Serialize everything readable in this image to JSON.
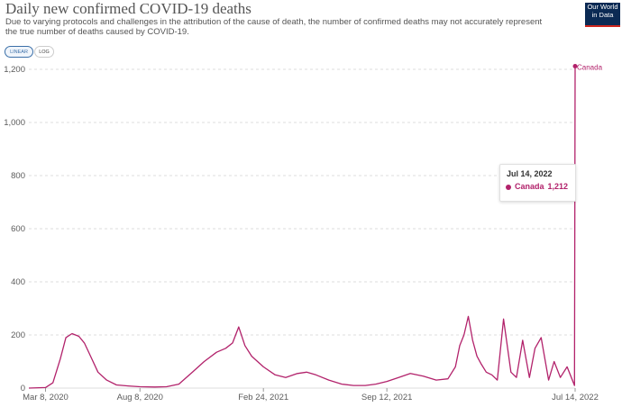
{
  "header": {
    "title": "Daily new confirmed COVID-19 deaths",
    "subtitle": "Due to varying protocols and challenges in the attribution of the cause of death, the number of confirmed deaths may not accurately represent the true number of deaths caused by COVID-19.",
    "logo_line1": "Our World",
    "logo_line2": "in Data"
  },
  "controls": {
    "linear_label": "LINEAR",
    "log_label": "LOG",
    "active": "linear"
  },
  "colors": {
    "series": "#b2226b",
    "grid": "#dddddd",
    "axis_text": "#5b5b5b"
  },
  "tooltip": {
    "date": "Jul 14, 2022",
    "series": "Canada",
    "value": "1,212"
  },
  "chart_data": {
    "type": "line",
    "title": "Daily new confirmed COVID-19 deaths",
    "xlabel": "",
    "ylabel": "",
    "ylim": [
      0,
      1200
    ],
    "yticks": [
      0,
      200,
      400,
      600,
      800,
      1000,
      1200
    ],
    "ytick_labels": [
      "0",
      "200",
      "400",
      "600",
      "800",
      "1,000",
      "1,200"
    ],
    "x_range": [
      "2020-02-10",
      "2022-07-14"
    ],
    "xtick_labels": [
      {
        "date": "2020-03-08",
        "label": "Mar 8, 2020"
      },
      {
        "date": "2020-08-08",
        "label": "Aug 8, 2020"
      },
      {
        "date": "2021-02-24",
        "label": "Feb 24, 2021"
      },
      {
        "date": "2021-09-12",
        "label": "Sep 12, 2021"
      },
      {
        "date": "2022-07-14",
        "label": "Jul 14, 2022"
      }
    ],
    "grid": true,
    "legend": "end-of-line label",
    "series": [
      {
        "name": "Canada",
        "x": [
          "2020-02-10",
          "2020-03-08",
          "2020-03-20",
          "2020-04-01",
          "2020-04-10",
          "2020-04-20",
          "2020-05-01",
          "2020-05-10",
          "2020-05-20",
          "2020-06-01",
          "2020-06-15",
          "2020-07-01",
          "2020-07-20",
          "2020-08-08",
          "2020-09-01",
          "2020-09-20",
          "2020-10-10",
          "2020-11-01",
          "2020-11-20",
          "2020-12-10",
          "2020-12-25",
          "2021-01-05",
          "2021-01-15",
          "2021-01-25",
          "2021-02-05",
          "2021-02-24",
          "2021-03-15",
          "2021-04-01",
          "2021-04-20",
          "2021-05-05",
          "2021-05-20",
          "2021-06-10",
          "2021-07-01",
          "2021-07-20",
          "2021-08-08",
          "2021-08-25",
          "2021-09-12",
          "2021-10-01",
          "2021-10-20",
          "2021-11-10",
          "2021-12-01",
          "2021-12-20",
          "2022-01-01",
          "2022-01-08",
          "2022-01-15",
          "2022-01-22",
          "2022-01-29",
          "2022-02-05",
          "2022-02-12",
          "2022-02-20",
          "2022-03-01",
          "2022-03-10",
          "2022-03-20",
          "2022-04-01",
          "2022-04-10",
          "2022-04-20",
          "2022-05-01",
          "2022-05-10",
          "2022-05-20",
          "2022-06-01",
          "2022-06-10",
          "2022-06-20",
          "2022-07-01",
          "2022-07-13",
          "2022-07-14"
        ],
        "y": [
          0,
          2,
          20,
          110,
          190,
          205,
          195,
          170,
          120,
          60,
          30,
          12,
          8,
          5,
          4,
          5,
          15,
          60,
          100,
          135,
          150,
          170,
          230,
          160,
          120,
          80,
          50,
          40,
          55,
          60,
          50,
          30,
          15,
          10,
          10,
          15,
          25,
          40,
          55,
          45,
          30,
          35,
          80,
          160,
          200,
          270,
          180,
          120,
          90,
          60,
          50,
          30,
          260,
          60,
          40,
          180,
          40,
          150,
          190,
          30,
          100,
          40,
          80,
          10,
          1212
        ]
      }
    ]
  }
}
